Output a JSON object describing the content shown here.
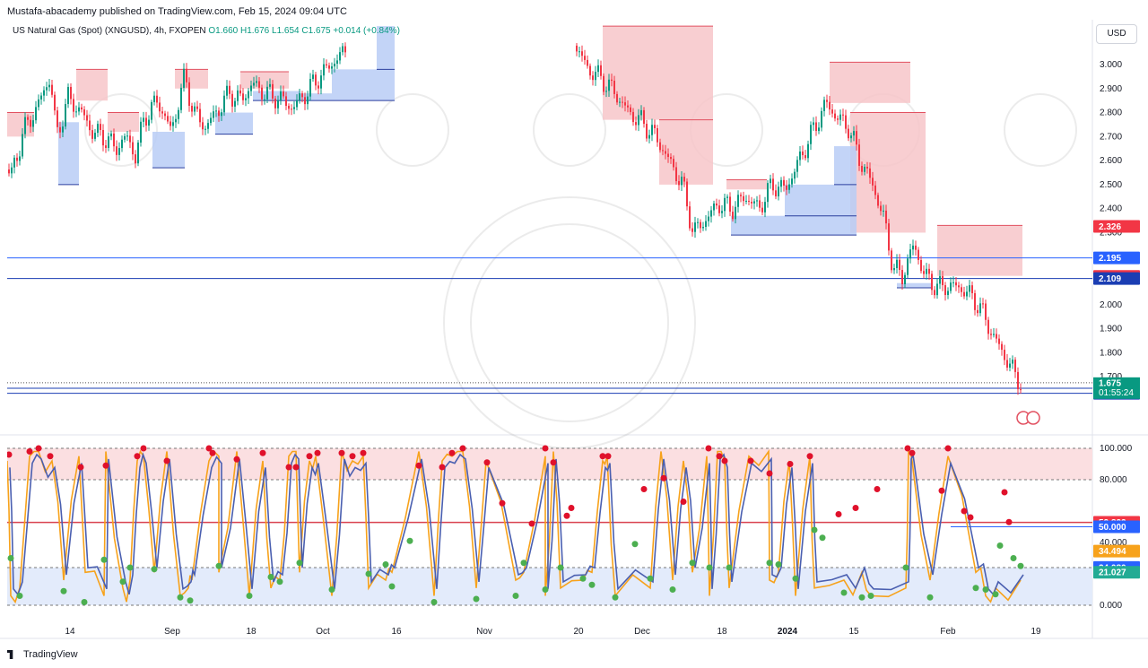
{
  "header": {
    "published": "Mustafa-abacademy published on TradingView.com, Feb 15, 2024 09:04 UTC"
  },
  "legend": {
    "symbol": "US Natural Gas (Spot) (XNGUSD), 4h, FXOPEN",
    "ohlc": "O1.660  H1.676  L1.654  C1.675  +0.014 (+0.84%)"
  },
  "currency": "USD",
  "footer": {
    "brand": "TradingView"
  },
  "colors": {
    "up": "#089981",
    "down": "#f23645",
    "supply": "#f7c6c9",
    "demand": "#b9cdf6",
    "osc_fast": "#f7a21b",
    "osc_slow": "#4a5fb0",
    "level": "#2962ff"
  },
  "chart_data": [
    {
      "type": "candlestick",
      "title": "US Natural Gas (Spot) (XNGUSD), 4h, FXOPEN",
      "x_ticks": [
        "14",
        "Sep",
        "18",
        "Oct",
        "16",
        "Nov",
        "20",
        "Dec",
        "18",
        "2024",
        "15",
        "Feb",
        "19"
      ],
      "y_ticks": [
        1.7,
        1.8,
        1.9,
        2.0,
        2.3,
        2.4,
        2.5,
        2.6,
        2.7,
        2.8,
        2.9,
        3.0
      ],
      "ylim": [
        1.6,
        3.1
      ],
      "last": {
        "price": 1.675,
        "countdown": "01:55:24"
      },
      "close_path": [
        [
          0,
          2.6
        ],
        [
          12,
          2.54
        ],
        [
          25,
          2.72
        ],
        [
          40,
          2.82
        ],
        [
          55,
          2.95
        ],
        [
          62,
          2.7
        ],
        [
          75,
          2.86
        ],
        [
          90,
          2.8
        ],
        [
          102,
          2.72
        ],
        [
          115,
          2.7
        ],
        [
          128,
          2.65
        ],
        [
          140,
          2.7
        ],
        [
          150,
          2.62
        ],
        [
          160,
          2.78
        ],
        [
          175,
          2.85
        ],
        [
          190,
          2.72
        ],
        [
          205,
          2.95
        ],
        [
          215,
          2.8
        ],
        [
          228,
          2.74
        ],
        [
          240,
          2.8
        ],
        [
          255,
          2.88
        ],
        [
          268,
          2.85
        ],
        [
          280,
          2.92
        ],
        [
          295,
          2.88
        ],
        [
          310,
          2.86
        ],
        [
          325,
          2.82
        ],
        [
          340,
          2.88
        ],
        [
          355,
          2.95
        ],
        [
          368,
          3.0
        ],
        [
          385,
          3.06
        ],
        [
          640,
          3.08
        ],
        [
          655,
          2.98
        ],
        [
          670,
          2.94
        ],
        [
          685,
          2.88
        ],
        [
          700,
          2.8
        ],
        [
          715,
          2.76
        ],
        [
          730,
          2.7
        ],
        [
          745,
          2.6
        ],
        [
          760,
          2.5
        ],
        [
          772,
          2.3
        ],
        [
          785,
          2.35
        ],
        [
          800,
          2.42
        ],
        [
          815,
          2.4
        ],
        [
          830,
          2.45
        ],
        [
          845,
          2.4
        ],
        [
          860,
          2.5
        ],
        [
          875,
          2.48
        ],
        [
          890,
          2.6
        ],
        [
          905,
          2.72
        ],
        [
          920,
          2.84
        ],
        [
          932,
          2.78
        ],
        [
          945,
          2.74
        ],
        [
          958,
          2.6
        ],
        [
          972,
          2.5
        ],
        [
          985,
          2.35
        ],
        [
          995,
          2.15
        ],
        [
          1005,
          2.12
        ],
        [
          1018,
          2.25
        ],
        [
          1030,
          2.12
        ],
        [
          1045,
          2.07
        ],
        [
          1060,
          2.08
        ],
        [
          1075,
          2.06
        ],
        [
          1090,
          2.0
        ],
        [
          1105,
          1.88
        ],
        [
          1120,
          1.78
        ],
        [
          1132,
          1.7
        ],
        [
          1138,
          1.675
        ]
      ],
      "levels": [
        {
          "label": "2.195",
          "value": 2.195,
          "color": "#2962ff"
        },
        {
          "label": "2.109",
          "value": 2.109,
          "color": "#1a3db3"
        },
        {
          "label": "1.652",
          "value": 1.652,
          "color": "#1a3db3"
        },
        {
          "label": "1.631",
          "value": 1.631,
          "color": "#1a3db3"
        }
      ],
      "price_badges": [
        {
          "label": "2.326",
          "value": 2.326,
          "color": "#f23645"
        },
        {
          "label": "2.118",
          "value": 2.118,
          "color": "#f23645"
        }
      ],
      "supply_zones": [
        {
          "x": [
            8,
            38
          ],
          "y": [
            2.7,
            2.8
          ]
        },
        {
          "x": [
            85,
            120
          ],
          "y": [
            2.85,
            2.98
          ]
        },
        {
          "x": [
            120,
            155
          ],
          "y": [
            2.72,
            2.8
          ]
        },
        {
          "x": [
            195,
            232
          ],
          "y": [
            2.9,
            2.98
          ]
        },
        {
          "x": [
            268,
            322
          ],
          "y": [
            2.9,
            2.97
          ]
        },
        {
          "x": [
            672,
            795
          ],
          "y": [
            2.77,
            3.16
          ]
        },
        {
          "x": [
            735,
            795
          ],
          "y": [
            2.5,
            2.77
          ]
        },
        {
          "x": [
            810,
            855
          ],
          "y": [
            2.48,
            2.52
          ]
        },
        {
          "x": [
            925,
            1015
          ],
          "y": [
            2.84,
            3.01
          ]
        },
        {
          "x": [
            948,
            1032
          ],
          "y": [
            2.3,
            2.8
          ]
        },
        {
          "x": [
            1045,
            1140
          ],
          "y": [
            2.12,
            2.33
          ]
        }
      ],
      "demand_zones": [
        {
          "x": [
            65,
            88
          ],
          "y": [
            2.5,
            2.76
          ]
        },
        {
          "x": [
            170,
            206
          ],
          "y": [
            2.57,
            2.72
          ]
        },
        {
          "x": [
            240,
            282
          ],
          "y": [
            2.71,
            2.8
          ]
        },
        {
          "x": [
            282,
            335
          ],
          "y": [
            2.85,
            2.89
          ]
        },
        {
          "x": [
            335,
            370
          ],
          "y": [
            2.85,
            2.88
          ]
        },
        {
          "x": [
            370,
            440
          ],
          "y": [
            2.85,
            2.98
          ]
        },
        {
          "x": [
            420,
            440
          ],
          "y": [
            2.98,
            3.16
          ]
        },
        {
          "x": [
            815,
            955
          ],
          "y": [
            2.29,
            2.37
          ]
        },
        {
          "x": [
            875,
            955
          ],
          "y": [
            2.37,
            2.5
          ]
        },
        {
          "x": [
            930,
            955
          ],
          "y": [
            2.5,
            2.66
          ]
        },
        {
          "x": [
            1000,
            1040
          ],
          "y": [
            2.07,
            2.09
          ]
        }
      ]
    },
    {
      "type": "oscillator",
      "y_ticks": [
        0,
        40,
        80,
        100
      ],
      "ylim": [
        0,
        100
      ],
      "bands": {
        "overbought": [
          80,
          100
        ],
        "oversold": [
          0,
          20
        ],
        "mid": 50
      },
      "badges": [
        {
          "label": "52.832",
          "value": 52.832,
          "color": "#f23645"
        },
        {
          "label": "50.000",
          "value": 50.0,
          "color": "#2962ff"
        },
        {
          "label": "34.494",
          "value": 34.494,
          "color": "#f7a21b"
        },
        {
          "label": "24.080",
          "value": 24.08,
          "color": "#2962ff"
        },
        {
          "label": "21.027",
          "value": 21.027,
          "color": "#22ab94"
        }
      ],
      "swing_highs_x": [
        8,
        33,
        43,
        58,
        88,
        118,
        153,
        160,
        186,
        233,
        244,
        264,
        293,
        322,
        330,
        345,
        352,
        381,
        393,
        405,
        467,
        493,
        504,
        516,
        542,
        608,
        617,
        672,
        677,
        737,
        762,
        788,
        800,
        808,
        835,
        857,
        880,
        903,
        1013,
        1017,
        1057
      ],
      "swing_lows_x": [
        12,
        22,
        71,
        95,
        116,
        137,
        145,
        172,
        201,
        210,
        214,
        244,
        278,
        302,
        312,
        334,
        370,
        411,
        430,
        437,
        484,
        531,
        575,
        584,
        608,
        625,
        650,
        660,
        686,
        725,
        750,
        772,
        791,
        813,
        858,
        868,
        887,
        908,
        941,
        961,
        971,
        1010,
        1037,
        1088,
        1099,
        1110,
        1138
      ],
      "marker_highs": [
        [
          10,
          96
        ],
        [
          33,
          98
        ],
        [
          43,
          100
        ],
        [
          56,
          95
        ],
        [
          90,
          88
        ],
        [
          118,
          89
        ],
        [
          153,
          95
        ],
        [
          160,
          100
        ],
        [
          186,
          92
        ],
        [
          233,
          100
        ],
        [
          237,
          97
        ],
        [
          264,
          93
        ],
        [
          293,
          97
        ],
        [
          322,
          88
        ],
        [
          330,
          88
        ],
        [
          345,
          95
        ],
        [
          354,
          97
        ],
        [
          381,
          97
        ],
        [
          393,
          95
        ],
        [
          405,
          97
        ],
        [
          467,
          89
        ],
        [
          493,
          88
        ],
        [
          504,
          97
        ],
        [
          516,
          100
        ],
        [
          543,
          91
        ],
        [
          560,
          65
        ],
        [
          593,
          52
        ],
        [
          608,
          100
        ],
        [
          617,
          91
        ],
        [
          632,
          57
        ],
        [
          637,
          62
        ],
        [
          672,
          95
        ],
        [
          678,
          95
        ],
        [
          718,
          74
        ],
        [
          740,
          81
        ],
        [
          762,
          66
        ],
        [
          790,
          100
        ],
        [
          802,
          95
        ],
        [
          808,
          92
        ],
        [
          837,
          92
        ],
        [
          858,
          84
        ],
        [
          881,
          90
        ],
        [
          903,
          95
        ],
        [
          935,
          58
        ],
        [
          954,
          62
        ],
        [
          978,
          74
        ],
        [
          1012,
          100
        ],
        [
          1017,
          97
        ],
        [
          1050,
          73
        ],
        [
          1057,
          100
        ],
        [
          1075,
          60
        ],
        [
          1082,
          56
        ],
        [
          1120,
          72
        ],
        [
          1125,
          53
        ]
      ],
      "marker_lows": [
        [
          12,
          30
        ],
        [
          22,
          6
        ],
        [
          71,
          9
        ],
        [
          94,
          2
        ],
        [
          116,
          29
        ],
        [
          137,
          15
        ],
        [
          145,
          24
        ],
        [
          172,
          23
        ],
        [
          201,
          5
        ],
        [
          212,
          3
        ],
        [
          244,
          25
        ],
        [
          278,
          6
        ],
        [
          302,
          18
        ],
        [
          312,
          15
        ],
        [
          334,
          27
        ],
        [
          370,
          10
        ],
        [
          411,
          20
        ],
        [
          430,
          26
        ],
        [
          437,
          12
        ],
        [
          457,
          41
        ],
        [
          484,
          2
        ],
        [
          531,
          4
        ],
        [
          575,
          6
        ],
        [
          584,
          27
        ],
        [
          608,
          10
        ],
        [
          625,
          24
        ],
        [
          650,
          17
        ],
        [
          660,
          13
        ],
        [
          686,
          5
        ],
        [
          708,
          39
        ],
        [
          725,
          17
        ],
        [
          750,
          10
        ],
        [
          772,
          27
        ],
        [
          791,
          24
        ],
        [
          813,
          24
        ],
        [
          858,
          27
        ],
        [
          868,
          26
        ],
        [
          887,
          17
        ],
        [
          908,
          48
        ],
        [
          917,
          43
        ],
        [
          941,
          8
        ],
        [
          961,
          5
        ],
        [
          971,
          6
        ],
        [
          1010,
          24
        ],
        [
          1037,
          5
        ],
        [
          1088,
          11
        ],
        [
          1099,
          10
        ],
        [
          1110,
          7
        ],
        [
          1115,
          38
        ],
        [
          1130,
          30
        ],
        [
          1138,
          25
        ]
      ]
    }
  ]
}
